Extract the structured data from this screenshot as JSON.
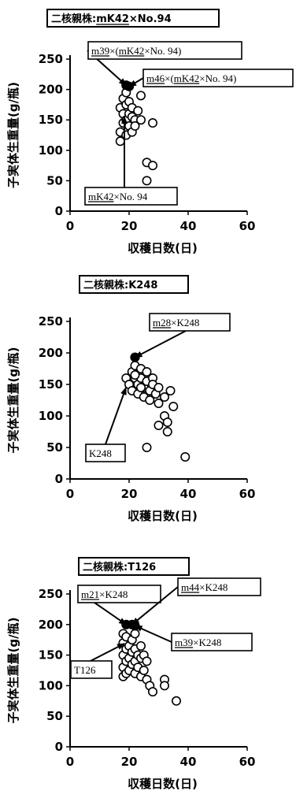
{
  "chart_data": [
    {
      "type": "scatter",
      "title": "二核親株:mK42×No.94",
      "title_underlined": "mK42",
      "xlabel": "収穫日数(日)",
      "ylabel": "子実体生重量(g/瓶)",
      "xlim": [
        0,
        60
      ],
      "ylim": [
        0,
        250
      ],
      "xticks": [
        0,
        20,
        40,
        60
      ],
      "yticks": [
        0,
        50,
        100,
        150,
        200,
        250
      ],
      "grid": false,
      "points": [
        {
          "x": 17,
          "y": 115
        },
        {
          "x": 17,
          "y": 130
        },
        {
          "x": 17,
          "y": 170
        },
        {
          "x": 18,
          "y": 145
        },
        {
          "x": 18,
          "y": 160
        },
        {
          "x": 18,
          "y": 185
        },
        {
          "x": 19,
          "y": 125
        },
        {
          "x": 19,
          "y": 150
        },
        {
          "x": 19,
          "y": 175
        },
        {
          "x": 19,
          "y": 195
        },
        {
          "x": 20,
          "y": 140
        },
        {
          "x": 20,
          "y": 160
        },
        {
          "x": 20,
          "y": 180
        },
        {
          "x": 21,
          "y": 130
        },
        {
          "x": 21,
          "y": 155
        },
        {
          "x": 21,
          "y": 170
        },
        {
          "x": 22,
          "y": 150
        },
        {
          "x": 22,
          "y": 140
        },
        {
          "x": 23,
          "y": 165
        },
        {
          "x": 24,
          "y": 150
        },
        {
          "x": 24,
          "y": 190
        },
        {
          "x": 26,
          "y": 80
        },
        {
          "x": 26,
          "y": 50
        },
        {
          "x": 28,
          "y": 75
        },
        {
          "x": 28,
          "y": 145
        }
      ],
      "highlighted_points": [
        {
          "x": 19,
          "y": 207
        },
        {
          "x": 20,
          "y": 205
        }
      ],
      "annotations": [
        {
          "text": "m39×(mK42×No. 94)",
          "underlined": "m39|mK42",
          "x": 19,
          "y": 207
        },
        {
          "text": "m46×(mK42×No. 94)",
          "underlined": "m46|mK42",
          "x": 20,
          "y": 205
        },
        {
          "text": "mK42×No. 94",
          "underlined": "mK42",
          "x": 19,
          "y": 150
        }
      ]
    },
    {
      "type": "scatter",
      "title": "二核親株:K248",
      "xlabel": "収穫日数(日)",
      "ylabel": "子実体生重量(g/瓶)",
      "xlim": [
        0,
        60
      ],
      "ylim": [
        0,
        250
      ],
      "xticks": [
        0,
        20,
        40,
        60
      ],
      "yticks": [
        0,
        50,
        100,
        150,
        200,
        250
      ],
      "grid": false,
      "points": [
        {
          "x": 19,
          "y": 160
        },
        {
          "x": 20,
          "y": 150
        },
        {
          "x": 21,
          "y": 170
        },
        {
          "x": 21,
          "y": 140
        },
        {
          "x": 22,
          "y": 180
        },
        {
          "x": 22,
          "y": 160
        },
        {
          "x": 23,
          "y": 150
        },
        {
          "x": 23,
          "y": 135
        },
        {
          "x": 24,
          "y": 175
        },
        {
          "x": 24,
          "y": 160
        },
        {
          "x": 25,
          "y": 145
        },
        {
          "x": 25,
          "y": 130
        },
        {
          "x": 26,
          "y": 170
        },
        {
          "x": 26,
          "y": 155
        },
        {
          "x": 27,
          "y": 140
        },
        {
          "x": 27,
          "y": 125
        },
        {
          "x": 28,
          "y": 160
        },
        {
          "x": 28,
          "y": 150
        },
        {
          "x": 29,
          "y": 135
        },
        {
          "x": 30,
          "y": 120
        },
        {
          "x": 30,
          "y": 145
        },
        {
          "x": 30,
          "y": 85
        },
        {
          "x": 32,
          "y": 100
        },
        {
          "x": 32,
          "y": 130
        },
        {
          "x": 33,
          "y": 90
        },
        {
          "x": 33,
          "y": 75
        },
        {
          "x": 34,
          "y": 140
        },
        {
          "x": 35,
          "y": 115
        },
        {
          "x": 26,
          "y": 50
        },
        {
          "x": 39,
          "y": 35
        },
        {
          "x": 22,
          "y": 165
        },
        {
          "x": 24,
          "y": 145
        }
      ],
      "highlighted_points": [
        {
          "x": 22,
          "y": 193
        }
      ],
      "annotations": [
        {
          "text": "m28×K248",
          "underlined": "m28",
          "x": 22,
          "y": 193
        },
        {
          "text": "K248",
          "underlined": "",
          "x": 20,
          "y": 158
        }
      ]
    },
    {
      "type": "scatter",
      "title": "二核親株:T126",
      "xlabel": "収穫日数(日)",
      "ylabel": "子実体生重量(g/瓶)",
      "xlim": [
        0,
        60
      ],
      "ylim": [
        0,
        250
      ],
      "xticks": [
        0,
        20,
        40,
        60
      ],
      "yticks": [
        0,
        50,
        100,
        150,
        200,
        250
      ],
      "grid": false,
      "points": [
        {
          "x": 18,
          "y": 115
        },
        {
          "x": 18,
          "y": 130
        },
        {
          "x": 18,
          "y": 150
        },
        {
          "x": 18,
          "y": 170
        },
        {
          "x": 18,
          "y": 185
        },
        {
          "x": 19,
          "y": 120
        },
        {
          "x": 19,
          "y": 140
        },
        {
          "x": 19,
          "y": 160
        },
        {
          "x": 19,
          "y": 180
        },
        {
          "x": 20,
          "y": 125
        },
        {
          "x": 20,
          "y": 145
        },
        {
          "x": 20,
          "y": 165
        },
        {
          "x": 21,
          "y": 135
        },
        {
          "x": 21,
          "y": 155
        },
        {
          "x": 21,
          "y": 175
        },
        {
          "x": 22,
          "y": 120
        },
        {
          "x": 22,
          "y": 140
        },
        {
          "x": 22,
          "y": 160
        },
        {
          "x": 22,
          "y": 185
        },
        {
          "x": 23,
          "y": 130
        },
        {
          "x": 23,
          "y": 150
        },
        {
          "x": 24,
          "y": 115
        },
        {
          "x": 24,
          "y": 145
        },
        {
          "x": 24,
          "y": 165
        },
        {
          "x": 25,
          "y": 125
        },
        {
          "x": 25,
          "y": 150
        },
        {
          "x": 26,
          "y": 110
        },
        {
          "x": 26,
          "y": 140
        },
        {
          "x": 27,
          "y": 100
        },
        {
          "x": 28,
          "y": 90
        },
        {
          "x": 32,
          "y": 110
        },
        {
          "x": 32,
          "y": 100
        },
        {
          "x": 36,
          "y": 75
        }
      ],
      "highlighted_points": [
        {
          "x": 19,
          "y": 200
        },
        {
          "x": 21,
          "y": 200
        },
        {
          "x": 22,
          "y": 198
        }
      ],
      "annotations": [
        {
          "text": "m21×K248",
          "underlined": "m21",
          "x": 19,
          "y": 200
        },
        {
          "text": "m44×K248",
          "underlined": "m44",
          "x": 21,
          "y": 200
        },
        {
          "text": "m39×K248",
          "underlined": "m39",
          "x": 22,
          "y": 198
        },
        {
          "text": "T126",
          "underlined": "",
          "x": 19,
          "y": 125
        }
      ]
    }
  ]
}
